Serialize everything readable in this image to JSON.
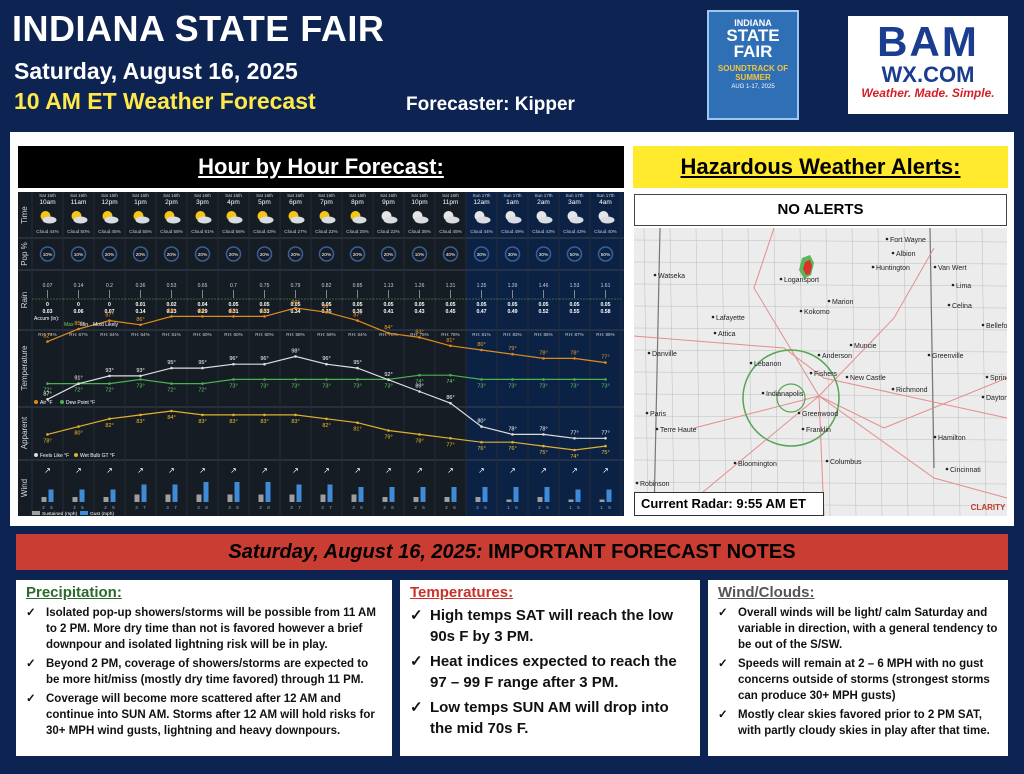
{
  "header": {
    "title": "INDIANA STATE FAIR",
    "date": "Saturday, August 16, 2025",
    "forecast_label": "10 AM ET Weather Forecast",
    "forecaster": "Forecaster: Kipper"
  },
  "fair_logo": {
    "line1": "INDIANA",
    "line2": "STATE",
    "line3": "FAIR",
    "line4": "SOUNDTRACK OF SUMMER",
    "line5": "AUG 1-17, 2025"
  },
  "bam_logo": {
    "b": "BAM",
    "site": "WX.COM",
    "tagline": "Weather. Made. Simple."
  },
  "hour_by_hour": {
    "title": "Hour by Hour Forecast:",
    "row_labels": {
      "time": "Time",
      "pop": "Pop %",
      "rain": "Rain",
      "temperature": "Temperature",
      "apparent": "Apparent",
      "wind": "Wind"
    },
    "hours": [
      {
        "day": "Sat 16th",
        "time": "10am",
        "cloud": "Cloud 44%",
        "pop": "10%",
        "rain": "0.07",
        "accum": "0",
        "precip": "0.03",
        "rh": "RH: 74%",
        "temp": "82°",
        "dew": "72°",
        "feels": "87°",
        "wbgt": "78°",
        "wind": "2",
        "gust": "5"
      },
      {
        "day": "Sat 16th",
        "time": "11am",
        "cloud": "Cloud 50%",
        "pop": "10%",
        "rain": "0.14",
        "accum": "0",
        "precip": "0.06",
        "rh": "RH: 67%",
        "temp": "85°",
        "dew": "72°",
        "feels": "91°",
        "wbgt": "80°",
        "wind": "2",
        "gust": "5"
      },
      {
        "day": "Sat 16th",
        "time": "12pm",
        "cloud": "Cloud 45%",
        "pop": "20%",
        "rain": "0.2",
        "accum": "0",
        "precip": "0.07",
        "rh": "RH: 64%",
        "temp": "87°",
        "dew": "72°",
        "feels": "93°",
        "wbgt": "82°",
        "wind": "2",
        "gust": "5"
      },
      {
        "day": "Sat 16th",
        "time": "1pm",
        "cloud": "Cloud 55%",
        "pop": "20%",
        "rain": "0.36",
        "accum": "0.01",
        "precip": "0.14",
        "rh": "RH: 64%",
        "temp": "86°",
        "dew": "73°",
        "feels": "93°",
        "wbgt": "83°",
        "wind": "3",
        "gust": "7"
      },
      {
        "day": "Sat 16th",
        "time": "2pm",
        "cloud": "Cloud 58%",
        "pop": "20%",
        "rain": "0.53",
        "accum": "0.02",
        "precip": "0.23",
        "rh": "RH: 61%",
        "temp": "88°",
        "dew": "72°",
        "feels": "95°",
        "wbgt": "84°",
        "wind": "3",
        "gust": "7"
      },
      {
        "day": "Sat 16th",
        "time": "3pm",
        "cloud": "Cloud 61%",
        "pop": "20%",
        "rain": "0.65",
        "accum": "0.04",
        "precip": "0.29",
        "rh": "RH: 60%",
        "temp": "88°",
        "dew": "72°",
        "feels": "95°",
        "wbgt": "83°",
        "wind": "3",
        "gust": "8"
      },
      {
        "day": "Sat 16th",
        "time": "4pm",
        "cloud": "Cloud 56%",
        "pop": "20%",
        "rain": "0.7",
        "accum": "0.05",
        "precip": "0.31",
        "rh": "RH: 60%",
        "temp": "88°",
        "dew": "73°",
        "feels": "96°",
        "wbgt": "83°",
        "wind": "3",
        "gust": "8"
      },
      {
        "day": "Sat 16th",
        "time": "5pm",
        "cloud": "Cloud 43%",
        "pop": "20%",
        "rain": "0.75",
        "accum": "0.05",
        "precip": "0.33",
        "rh": "RH: 60%",
        "temp": "88°",
        "dew": "73°",
        "feels": "96°",
        "wbgt": "83°",
        "wind": "3",
        "gust": "8"
      },
      {
        "day": "Sat 16th",
        "time": "6pm",
        "cloud": "Cloud 27%",
        "pop": "20%",
        "rain": "0.79",
        "accum": "0.05",
        "precip": "0.34",
        "rh": "RH: 58%",
        "temp": "90°",
        "dew": "73°",
        "feels": "98°",
        "wbgt": "83°",
        "wind": "3",
        "gust": "7"
      },
      {
        "day": "Sat 16th",
        "time": "7pm",
        "cloud": "Cloud 22%",
        "pop": "20%",
        "rain": "0.82",
        "accum": "0.05",
        "precip": "0.35",
        "rh": "RH: 59%",
        "temp": "89°",
        "dew": "73°",
        "feels": "96°",
        "wbgt": "82°",
        "wind": "3",
        "gust": "7"
      },
      {
        "day": "Sat 16th",
        "time": "8pm",
        "cloud": "Cloud 25%",
        "pop": "20%",
        "rain": "0.85",
        "accum": "0.05",
        "precip": "0.36",
        "rh": "RH: 64%",
        "temp": "87°",
        "dew": "73°",
        "feels": "95°",
        "wbgt": "81°",
        "wind": "3",
        "gust": "6"
      },
      {
        "day": "Sat 16th",
        "time": "9pm",
        "cloud": "Cloud 22%",
        "pop": "20%",
        "rain": "1.13",
        "accum": "0.05",
        "precip": "0.41",
        "rh": "RH: 70%",
        "temp": "84°",
        "dew": "73°",
        "feels": "92°",
        "wbgt": "79°",
        "wind": "2",
        "gust": "6"
      },
      {
        "day": "Sat 16th",
        "time": "10pm",
        "cloud": "Cloud 35%",
        "pop": "10%",
        "rain": "1.26",
        "accum": "0.05",
        "precip": "0.43",
        "rh": "RH: 75%",
        "temp": "83°",
        "dew": "74°",
        "feels": "89°",
        "wbgt": "78°",
        "wind": "2",
        "gust": "6"
      },
      {
        "day": "Sat 16th",
        "time": "11pm",
        "cloud": "Cloud 45%",
        "pop": "40%",
        "rain": "1.31",
        "accum": "0.05",
        "precip": "0.45",
        "rh": "RH: 78%",
        "temp": "81°",
        "dew": "74°",
        "feels": "86°",
        "wbgt": "77°",
        "wind": "2",
        "gust": "6"
      },
      {
        "day": "Sun 17th",
        "time": "12am",
        "cloud": "Cloud 44%",
        "pop": "30%",
        "rain": "1.35",
        "accum": "0.05",
        "precip": "0.47",
        "rh": "RH: 81%",
        "temp": "80°",
        "dew": "73°",
        "feels": "80°",
        "wbgt": "76°",
        "wind": "2",
        "gust": "6"
      },
      {
        "day": "Sun 17th",
        "time": "1am",
        "cloud": "Cloud 49%",
        "pop": "30%",
        "rain": "1.39",
        "accum": "0.05",
        "precip": "0.49",
        "rh": "RH: 83%",
        "temp": "79°",
        "dew": "73°",
        "feels": "78°",
        "wbgt": "76°",
        "wind": "1",
        "gust": "6"
      },
      {
        "day": "Sun 17th",
        "time": "2am",
        "cloud": "Cloud 43%",
        "pop": "30%",
        "rain": "1.46",
        "accum": "0.05",
        "precip": "0.52",
        "rh": "RH: 85%",
        "temp": "78°",
        "dew": "73°",
        "feels": "78°",
        "wbgt": "75°",
        "wind": "2",
        "gust": "6"
      },
      {
        "day": "Sun 17th",
        "time": "3am",
        "cloud": "Cloud 43%",
        "pop": "50%",
        "rain": "1.53",
        "accum": "0.05",
        "precip": "0.55",
        "rh": "RH: 87%",
        "temp": "78°",
        "dew": "73°",
        "feels": "77°",
        "wbgt": "74°",
        "wind": "1",
        "gust": "5"
      },
      {
        "day": "Sun 17th",
        "time": "4am",
        "cloud": "Cloud 40%",
        "pop": "50%",
        "rain": "1.61",
        "accum": "0.05",
        "precip": "0.58",
        "rh": "RH: 88%",
        "temp": "77°",
        "dew": "73°",
        "feels": "77°",
        "wbgt": "75°",
        "wind": "1",
        "gust": "5"
      }
    ],
    "legend": {
      "accum": "Accum (in):",
      "max": "Max",
      "min": "Min",
      "likely": "Most Likely",
      "air": "Air °F",
      "dew": "Dew Point °F",
      "feels": "Feels Like °F",
      "wbgt": "Wet Bulb GT °F",
      "sustained": "Sustained (mph)",
      "gust": "Gust (mph)"
    }
  },
  "alerts": {
    "title": "Hazardous Weather Alerts:",
    "status": "NO ALERTS",
    "radar_label": "Current Radar: 9:55 AM ET",
    "cities": [
      {
        "name": "Fort Wayne"
      },
      {
        "name": "Albion"
      },
      {
        "name": "Huntington"
      },
      {
        "name": "Van Wert"
      },
      {
        "name": "Watseka"
      },
      {
        "name": "Logansport"
      },
      {
        "name": "Marion"
      },
      {
        "name": "Lima"
      },
      {
        "name": "Celina"
      },
      {
        "name": "Kokomo"
      },
      {
        "name": "Lafayette"
      },
      {
        "name": "Bellefontaine"
      },
      {
        "name": "Attica"
      },
      {
        "name": "Muncie"
      },
      {
        "name": "Danville"
      },
      {
        "name": "Anderson"
      },
      {
        "name": "Greenville"
      },
      {
        "name": "Lebanon"
      },
      {
        "name": "Fishers"
      },
      {
        "name": "New Castle"
      },
      {
        "name": "Springfield"
      },
      {
        "name": "Richmond"
      },
      {
        "name": "Indianapolis"
      },
      {
        "name": "Dayton"
      },
      {
        "name": "Paris"
      },
      {
        "name": "Greenwood"
      },
      {
        "name": "Terre Haute"
      },
      {
        "name": "Franklin"
      },
      {
        "name": "Hamilton"
      },
      {
        "name": "Bloomington"
      },
      {
        "name": "Columbus"
      },
      {
        "name": "Cincinnati"
      },
      {
        "name": "Robinson"
      }
    ],
    "clarity": "CLARITY"
  },
  "notes": {
    "date": "Saturday, August 16, 2025:",
    "title": " IMPORTANT FORECAST NOTES",
    "precipitation": {
      "heading": "Precipitation:",
      "items": [
        "Isolated pop-up showers/storms will be possible from 11 AM to 2 PM. More dry time than not is favored however a brief downpour and isolated lightning risk will be in play.",
        "Beyond 2 PM, coverage of showers/storms are expected to be more hit/miss (mostly dry time favored) through 11 PM.",
        "Coverage will become more scattered after 12 AM and continue into SUN AM. Storms after 12 AM will hold risks for 30+ MPH wind gusts, lightning and heavy downpours."
      ]
    },
    "temperatures": {
      "heading": "Temperatures:",
      "items": [
        "High temps SAT will reach the low 90s F by 3 PM.",
        "Heat indices expected to reach the 97 – 99 F range after 3 PM.",
        "Low temps SUN AM will drop into the mid 70s F."
      ]
    },
    "wind": {
      "heading": "Wind/Clouds:",
      "items": [
        "Overall winds will be light/ calm Saturday and variable in direction, with a general tendency to be out of the S/SW.",
        "Speeds will remain at 2 – 6 MPH with no gust concerns outside of storms (strongest storms can produce 30+ MPH gusts)",
        "Mostly clear skies favored prior to 2 PM SAT, with partly cloudy skies in play after that time."
      ]
    }
  },
  "colors": {
    "navy": "#0d2453",
    "yellow": "#ffe94a",
    "red_bar": "#c93d33",
    "alert_yellow": "#ffea2e",
    "temp_line": "#e08a1e",
    "dew_line": "#4caf50"
  }
}
